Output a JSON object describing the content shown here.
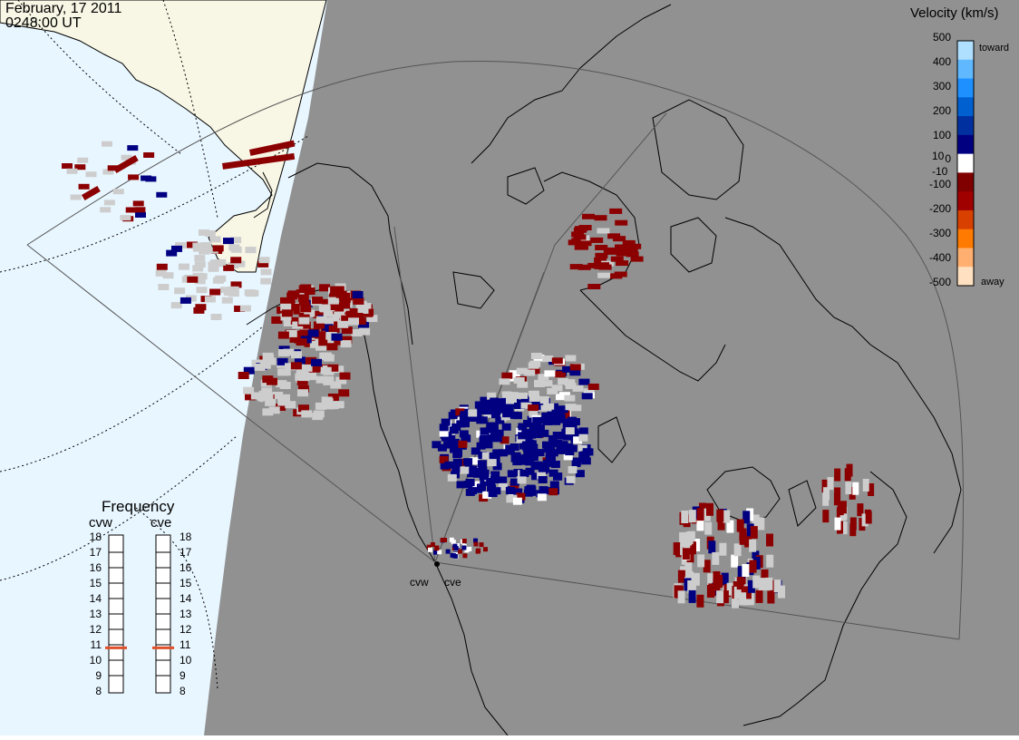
{
  "title": {
    "date": "February, 17 2011",
    "time": "0248:00 UT"
  },
  "velocity_scale": {
    "title": "Velocity (km/s)",
    "ticks": [
      "500",
      "400",
      "300",
      "200",
      "100",
      "10",
      "0",
      "-10",
      "-100",
      "-200",
      "-300",
      "-400",
      "-500"
    ],
    "toward_label": "toward",
    "away_label": "away",
    "colors": [
      "#ffe0c0",
      "#ffb070",
      "#ff7a00",
      "#d84000",
      "#a00000",
      "#800000",
      "#ffffff",
      "#000080",
      "#0030a0",
      "#0060d0",
      "#1e90ff",
      "#60b8ff",
      "#b0e0ff"
    ]
  },
  "frequency_panel": {
    "title": "Frequency",
    "radars": [
      {
        "label": "cvw",
        "freq_mhz": 10.8
      },
      {
        "label": "cve",
        "freq_mhz": 10.8
      }
    ],
    "ticks": [
      "18",
      "17",
      "16",
      "15",
      "14",
      "13",
      "12",
      "11",
      "10",
      "9",
      "8"
    ]
  },
  "radar_sites": [
    "cvw",
    "cve"
  ],
  "colors": {
    "night": "#919191",
    "day_ocean": "#e8f6ff",
    "day_land": "#f8f6e4",
    "coastline": "#000000",
    "ground_scatter": "#cdcdcd",
    "away_dark": "#8b0000",
    "toward_dark": "#000080"
  }
}
